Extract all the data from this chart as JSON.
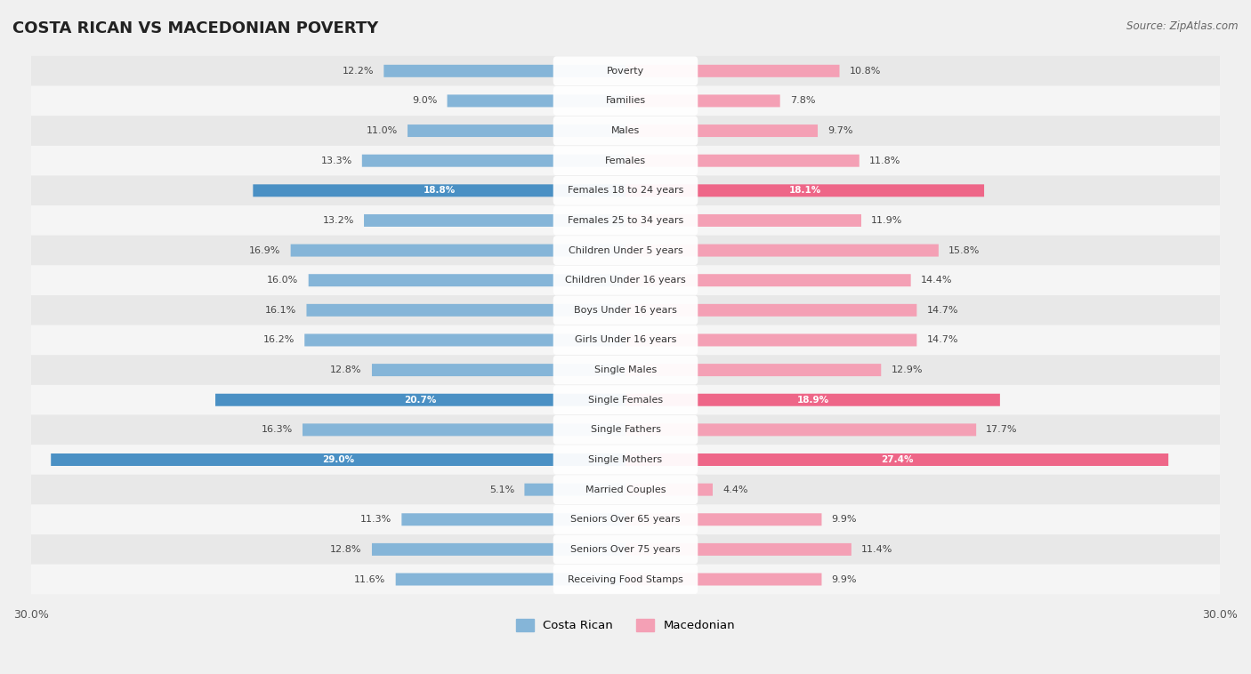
{
  "title": "COSTA RICAN VS MACEDONIAN POVERTY",
  "source": "Source: ZipAtlas.com",
  "categories": [
    "Poverty",
    "Families",
    "Males",
    "Females",
    "Females 18 to 24 years",
    "Females 25 to 34 years",
    "Children Under 5 years",
    "Children Under 16 years",
    "Boys Under 16 years",
    "Girls Under 16 years",
    "Single Males",
    "Single Females",
    "Single Fathers",
    "Single Mothers",
    "Married Couples",
    "Seniors Over 65 years",
    "Seniors Over 75 years",
    "Receiving Food Stamps"
  ],
  "costa_rican": [
    12.2,
    9.0,
    11.0,
    13.3,
    18.8,
    13.2,
    16.9,
    16.0,
    16.1,
    16.2,
    12.8,
    20.7,
    16.3,
    29.0,
    5.1,
    11.3,
    12.8,
    11.6
  ],
  "macedonian": [
    10.8,
    7.8,
    9.7,
    11.8,
    18.1,
    11.9,
    15.8,
    14.4,
    14.7,
    14.7,
    12.9,
    18.9,
    17.7,
    27.4,
    4.4,
    9.9,
    11.4,
    9.9
  ],
  "costa_rican_color": "#85b5d8",
  "macedonian_color": "#f4a0b5",
  "costa_rican_highlight_color": "#4a90c4",
  "macedonian_highlight_color": "#ee6688",
  "highlight_rows": [
    4,
    11,
    13
  ],
  "background_color": "#f0f0f0",
  "row_bg_even": "#e8e8e8",
  "row_bg_odd": "#f5f5f5",
  "axis_max": 30.0,
  "legend_label_cr": "Costa Rican",
  "legend_label_mac": "Macedonian"
}
